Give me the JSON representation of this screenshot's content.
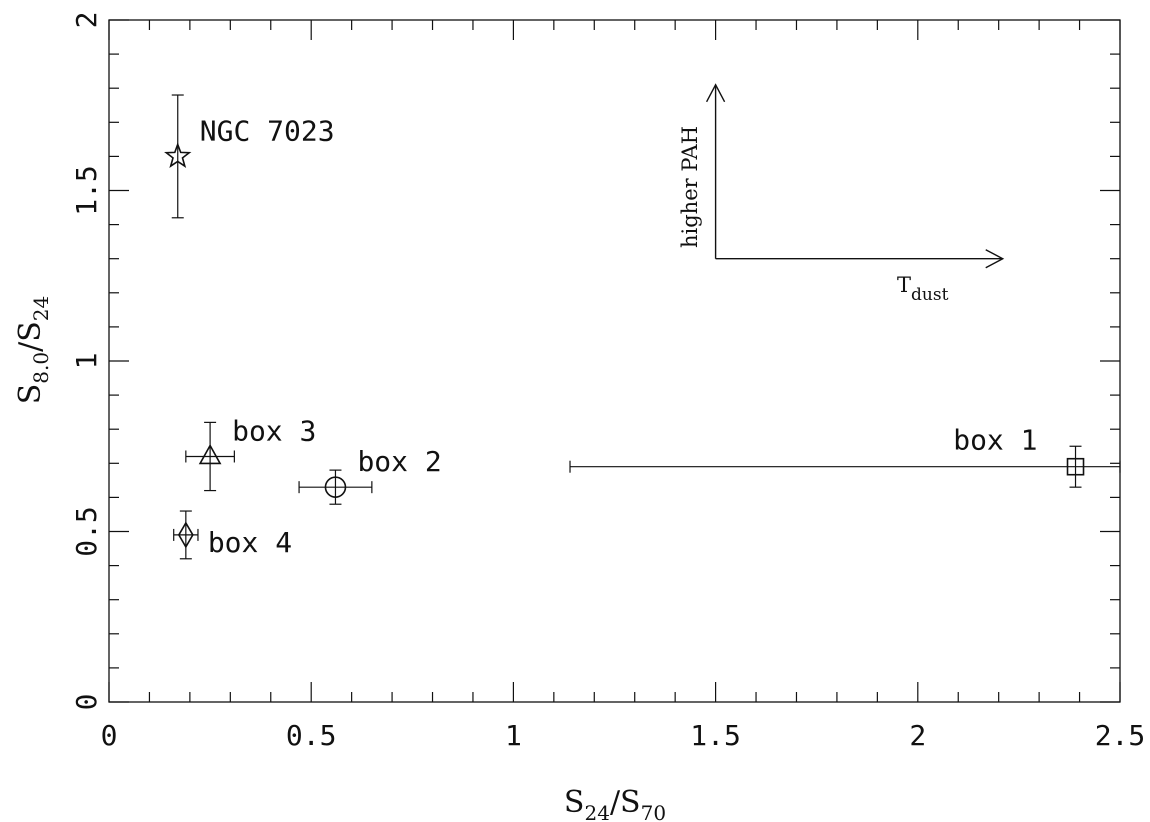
{
  "chart_data": {
    "type": "scatter",
    "xlabel": {
      "main": "S",
      "sub1": "24",
      "sep": "/S",
      "sub2": "70"
    },
    "ylabel": {
      "main": "S",
      "sub1": "8.0",
      "sep": "/S",
      "sub2": "24"
    },
    "xlim": [
      0,
      2.5
    ],
    "ylim": [
      0,
      2
    ],
    "x_ticks": [
      {
        "value": 0,
        "label": "0"
      },
      {
        "value": 0.5,
        "label": "0.5"
      },
      {
        "value": 1,
        "label": "1"
      },
      {
        "value": 1.5,
        "label": "1.5"
      },
      {
        "value": 2,
        "label": "2"
      },
      {
        "value": 2.5,
        "label": "2.5"
      }
    ],
    "y_ticks": [
      {
        "value": 0,
        "label": "0"
      },
      {
        "value": 0.5,
        "label": "0.5"
      },
      {
        "value": 1,
        "label": "1"
      },
      {
        "value": 1.5,
        "label": "1.5"
      },
      {
        "value": 2,
        "label": "2"
      }
    ],
    "x_minor_step": 0.1,
    "y_minor_step": 0.1,
    "grid": false,
    "points": [
      {
        "label": "NGC 7023",
        "marker": "star",
        "x": 0.17,
        "y": 1.6,
        "xerr": [
          0,
          0
        ],
        "yerr": [
          0.18,
          0.18
        ],
        "label_position": "right-above"
      },
      {
        "label": "box 3",
        "marker": "triangle",
        "x": 0.25,
        "y": 0.72,
        "xerr": [
          0.06,
          0.06
        ],
        "yerr": [
          0.1,
          0.1
        ],
        "label_position": "right-above"
      },
      {
        "label": "box 2",
        "marker": "circle",
        "x": 0.56,
        "y": 0.63,
        "xerr": [
          0.09,
          0.09
        ],
        "yerr": [
          0.05,
          0.05
        ],
        "label_position": "right-above"
      },
      {
        "label": "box 4",
        "marker": "diamond",
        "x": 0.19,
        "y": 0.49,
        "xerr": [
          0.03,
          0.03
        ],
        "yerr": [
          0.07,
          0.07
        ],
        "label_position": "right"
      },
      {
        "label": "box 1",
        "marker": "square",
        "x": 2.39,
        "y": 0.69,
        "xerr": [
          1.25,
          0.11
        ],
        "yerr": [
          0.06,
          0.06
        ],
        "label_position": "left-above"
      }
    ],
    "annotation_arrows": {
      "origin": [
        1.5,
        1.3
      ],
      "up_end": [
        1.5,
        1.81
      ],
      "right_end": [
        2.21,
        1.3
      ],
      "up_label": "higher PAH",
      "right_label": {
        "main": "T",
        "sub": "dust"
      }
    }
  }
}
